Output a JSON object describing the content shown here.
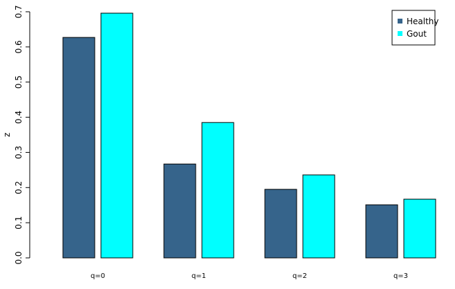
{
  "chart_data": {
    "type": "bar",
    "ylabel": "z",
    "categories": [
      "q=0",
      "q=1",
      "q=2",
      "q=3"
    ],
    "series": [
      {
        "name": "Healthy",
        "color": "#36648b",
        "values": [
          0.627,
          0.267,
          0.195,
          0.151
        ]
      },
      {
        "name": "Gout",
        "color": "#00ffff",
        "values": [
          0.696,
          0.385,
          0.236,
          0.167
        ]
      }
    ],
    "ylim": [
      0,
      0.7
    ],
    "yticks": [
      {
        "value": 0,
        "label": "0.0"
      },
      0.1,
      0.2,
      0.3,
      0.4,
      0.5,
      0.6,
      0.7
    ],
    "legend": "top-right"
  }
}
